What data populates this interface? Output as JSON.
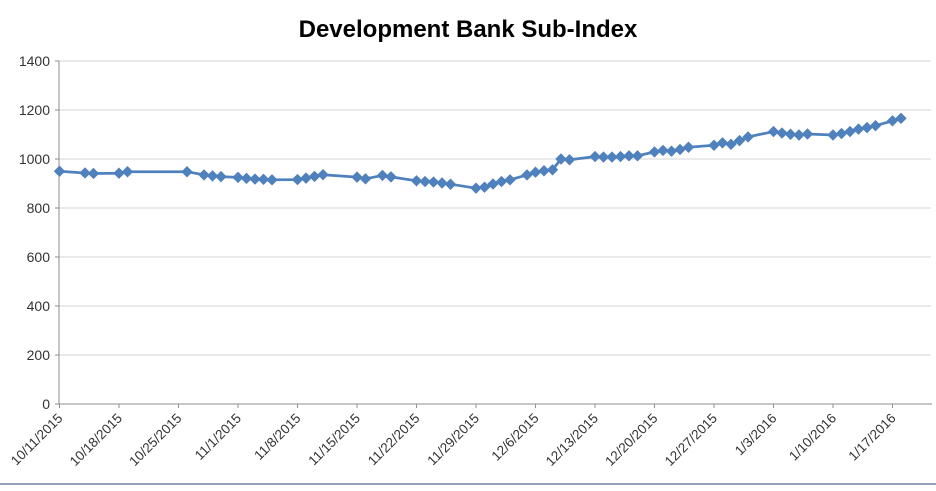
{
  "page": {
    "bottom_border_color": "#93A2B8",
    "background_color": "#FFFFFF"
  },
  "chart_data": {
    "type": "line",
    "title": "Development Bank Sub-Index",
    "title_color": "#000000",
    "legend": "none",
    "grid": "horizontal",
    "colors": {
      "series": "#4F81BD",
      "gridline": "#D6D6D6",
      "axis": "#8E8E8E",
      "tick_label": "#333333"
    },
    "y_axis": {
      "min": 0,
      "max": 1400,
      "tick_step": 200,
      "tick_labels": [
        "0",
        "200",
        "400",
        "600",
        "800",
        "1000",
        "1200",
        "1400"
      ]
    },
    "x_axis": {
      "tick_labels": [
        "10/11/2015",
        "10/18/2015",
        "10/25/2015",
        "11/1/2015",
        "11/8/2015",
        "11/15/2015",
        "11/22/2015",
        "11/29/2015",
        "12/6/2015",
        "12/13/2015",
        "12/20/2015",
        "12/27/2015",
        "1/3/2016",
        "1/10/2016",
        "1/17/2016"
      ],
      "tick_interval_days": 7,
      "range_days": [
        0,
        102.5
      ],
      "label_rotation_deg": 45
    },
    "series": [
      {
        "name": "Development Bank Sub-Index",
        "color": "#4F81BD",
        "marker": "diamond",
        "points": [
          [
            0,
            950
          ],
          [
            3,
            943
          ],
          [
            4,
            941
          ],
          [
            7,
            942
          ],
          [
            8,
            948
          ],
          [
            15,
            948
          ],
          [
            17,
            935
          ],
          [
            18,
            931
          ],
          [
            19,
            928
          ],
          [
            21,
            925
          ],
          [
            22,
            921
          ],
          [
            23,
            918
          ],
          [
            24,
            917
          ],
          [
            25,
            915
          ],
          [
            28,
            916
          ],
          [
            29,
            922
          ],
          [
            30,
            929
          ],
          [
            31,
            936
          ],
          [
            35,
            926
          ],
          [
            36,
            919
          ],
          [
            38,
            933
          ],
          [
            39,
            927
          ],
          [
            42,
            911
          ],
          [
            43,
            908
          ],
          [
            44,
            906
          ],
          [
            45,
            902
          ],
          [
            46,
            897
          ],
          [
            49,
            881
          ],
          [
            50,
            885
          ],
          [
            51,
            898
          ],
          [
            52,
            908
          ],
          [
            53,
            915
          ],
          [
            55,
            935
          ],
          [
            56,
            946
          ],
          [
            57,
            952
          ],
          [
            58,
            956
          ],
          [
            59,
            1000
          ],
          [
            60,
            997
          ],
          [
            63,
            1010
          ],
          [
            64,
            1008
          ],
          [
            65,
            1008
          ],
          [
            66,
            1010
          ],
          [
            67,
            1013
          ],
          [
            68,
            1013
          ],
          [
            70,
            1029
          ],
          [
            71,
            1035
          ],
          [
            72,
            1032
          ],
          [
            73,
            1039
          ],
          [
            74,
            1048
          ],
          [
            77,
            1056
          ],
          [
            78,
            1066
          ],
          [
            79,
            1060
          ],
          [
            80,
            1075
          ],
          [
            81,
            1090
          ],
          [
            84,
            1112
          ],
          [
            85,
            1106
          ],
          [
            86,
            1101
          ],
          [
            87,
            1098
          ],
          [
            88,
            1102
          ],
          [
            91,
            1098
          ],
          [
            92,
            1104
          ],
          [
            93,
            1112
          ],
          [
            94,
            1122
          ],
          [
            95,
            1128
          ],
          [
            96,
            1136
          ],
          [
            98,
            1156
          ],
          [
            99,
            1166
          ]
        ]
      }
    ]
  }
}
